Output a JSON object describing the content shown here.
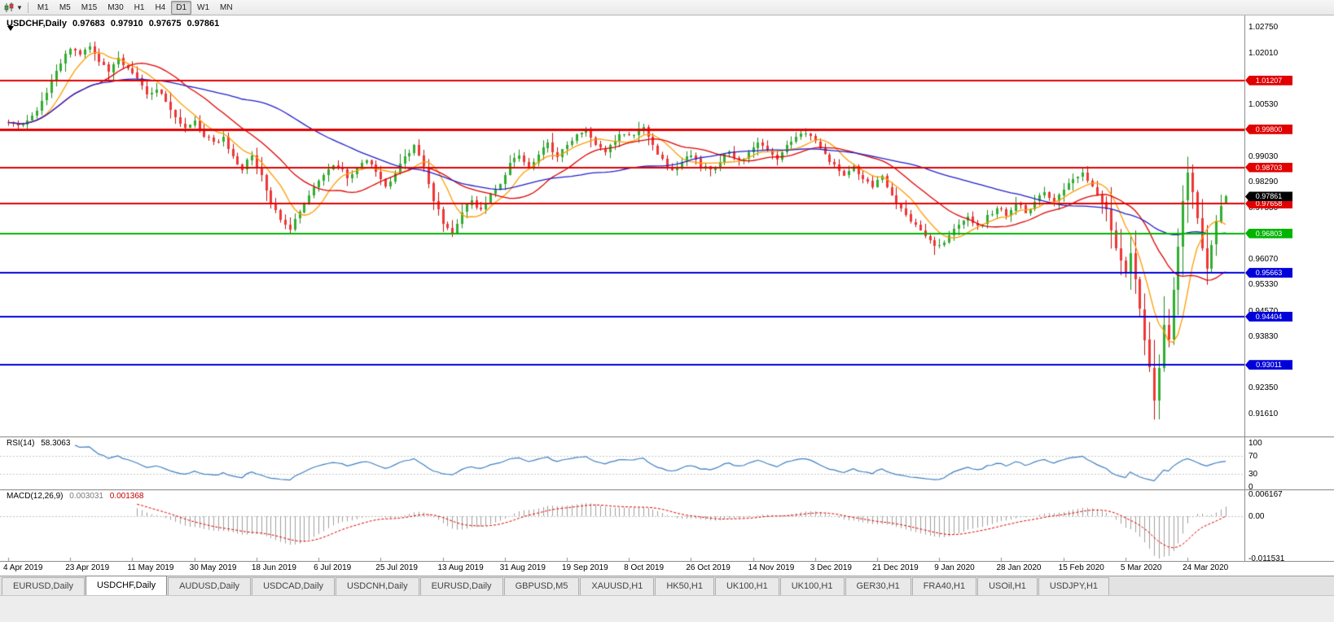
{
  "toolbar": {
    "chart_type_icon": "candlestick-chart-icon",
    "timeframes": [
      {
        "label": "M1"
      },
      {
        "label": "M5"
      },
      {
        "label": "M15"
      },
      {
        "label": "M30"
      },
      {
        "label": "H1"
      },
      {
        "label": "H4"
      },
      {
        "label": "D1",
        "active": true
      },
      {
        "label": "W1"
      },
      {
        "label": "MN"
      }
    ]
  },
  "chart": {
    "symbol_title": "USDCHF,Daily",
    "open": "0.97683",
    "high": "0.97910",
    "low": "0.97675",
    "close": "0.97861"
  },
  "price_axis": {
    "ticks": [
      {
        "v": 1.0275,
        "label": "1.02750"
      },
      {
        "v": 1.0201,
        "label": "1.02010"
      },
      {
        "v": 1.0053,
        "label": "1.00530"
      },
      {
        "v": 0.9903,
        "label": "0.99030"
      },
      {
        "v": 0.9829,
        "label": "0.98290"
      },
      {
        "v": 0.9755,
        "label": "0.97550"
      },
      {
        "v": 0.9607,
        "label": "0.96070"
      },
      {
        "v": 0.9533,
        "label": "0.95330"
      },
      {
        "v": 0.9457,
        "label": "0.94570"
      },
      {
        "v": 0.9383,
        "label": "0.93830"
      },
      {
        "v": 0.9235,
        "label": "0.92350"
      },
      {
        "v": 0.9161,
        "label": "0.91610"
      }
    ]
  },
  "rsi": {
    "name": "RSI(14)",
    "value": "58.3063",
    "color": "#3e7fc1",
    "level_lines": [
      70,
      30
    ],
    "axis": [
      {
        "v": 100,
        "label": "100"
      },
      {
        "v": 70,
        "label": "70"
      },
      {
        "v": 30,
        "label": "30"
      },
      {
        "v": 0,
        "label": "0"
      }
    ]
  },
  "macd": {
    "name": "MACD(12,26,9)",
    "value_main": "0.003031",
    "value_signal": "0.001368",
    "hist_color": "#9f9f9f",
    "signal_color": "#e00000",
    "axis": [
      {
        "slot": "top",
        "label": "0.006167"
      },
      {
        "slot": "zero",
        "label": "0.00"
      },
      {
        "slot": "bottom",
        "label": "-0.011531"
      }
    ]
  },
  "tabs": [
    {
      "label": "EURUSD,Daily"
    },
    {
      "label": "USDCHF,Daily",
      "active": true
    },
    {
      "label": "AUDUSD,Daily"
    },
    {
      "label": "USDCAD,Daily"
    },
    {
      "label": "USDCNH,Daily"
    },
    {
      "label": "EURUSD,Daily"
    },
    {
      "label": "GBPUSD,M5"
    },
    {
      "label": "XAUUSD,H1"
    },
    {
      "label": "HK50,H1"
    },
    {
      "label": "UK100,H1"
    },
    {
      "label": "UK100,H1"
    },
    {
      "label": "GER30,H1"
    },
    {
      "label": "FRA40,H1"
    },
    {
      "label": "USOil,H1"
    },
    {
      "label": "USDJPY,H1"
    }
  ],
  "chart_data": {
    "type": "candlestick",
    "symbol": "USDCHF",
    "timeframe": "Daily",
    "n_candles": 256,
    "price_range": {
      "top": 1.0275,
      "bottom": 0.9161
    },
    "x_label_every": 13,
    "x_labels": [
      "4 Apr 2019",
      "23 Apr 2019",
      "11 May 2019",
      "30 May 2019",
      "18 Jun 2019",
      "6 Jul 2019",
      "25 Jul 2019",
      "13 Aug 2019",
      "31 Aug 2019",
      "19 Sep 2019",
      "8 Oct 2019",
      "26 Oct 2019",
      "14 Nov 2019",
      "3 Dec 2019",
      "21 Dec 2019",
      "9 Jan 2020",
      "28 Jan 2020",
      "15 Feb 2020",
      "5 Mar 2020",
      "24 Mar 2020"
    ],
    "last_ohlc": [
      0.97683,
      0.9791,
      0.97675,
      0.97861
    ],
    "close_anchors": [
      [
        0,
        1.0003
      ],
      [
        3,
        0.9998
      ],
      [
        5,
        1.0015
      ],
      [
        7,
        1.006
      ],
      [
        9,
        1.012
      ],
      [
        11,
        1.0175
      ],
      [
        13,
        1.021
      ],
      [
        15,
        1.019
      ],
      [
        17,
        1.0215
      ],
      [
        19,
        1.018
      ],
      [
        21,
        1.015
      ],
      [
        23,
        1.018
      ],
      [
        25,
        1.0155
      ],
      [
        27,
        1.012
      ],
      [
        29,
        1.0085
      ],
      [
        31,
        1.01
      ],
      [
        33,
        1.0055
      ],
      [
        35,
        1.002
      ],
      [
        37,
        0.9985
      ],
      [
        39,
        1.0
      ],
      [
        41,
        0.9965
      ],
      [
        43,
        0.9945
      ],
      [
        45,
        0.9955
      ],
      [
        47,
        0.9898
      ],
      [
        49,
        0.9868
      ],
      [
        51,
        0.9905
      ],
      [
        53,
        0.9845
      ],
      [
        55,
        0.9768
      ],
      [
        57,
        0.9718
      ],
      [
        59,
        0.9698
      ],
      [
        61,
        0.9745
      ],
      [
        63,
        0.979
      ],
      [
        65,
        0.983
      ],
      [
        67,
        0.9862
      ],
      [
        69,
        0.9878
      ],
      [
        71,
        0.9843
      ],
      [
        73,
        0.9868
      ],
      [
        75,
        0.9893
      ],
      [
        77,
        0.9852
      ],
      [
        79,
        0.9812
      ],
      [
        81,
        0.9853
      ],
      [
        83,
        0.9903
      ],
      [
        85,
        0.9933
      ],
      [
        87,
        0.9868
      ],
      [
        89,
        0.9778
      ],
      [
        91,
        0.9713
      ],
      [
        93,
        0.9688
      ],
      [
        95,
        0.9738
      ],
      [
        97,
        0.9778
      ],
      [
        99,
        0.9744
      ],
      [
        101,
        0.9788
      ],
      [
        103,
        0.9828
      ],
      [
        105,
        0.9878
      ],
      [
        107,
        0.9903
      ],
      [
        109,
        0.9868
      ],
      [
        111,
        0.9908
      ],
      [
        113,
        0.9938
      ],
      [
        115,
        0.9903
      ],
      [
        117,
        0.9928
      ],
      [
        119,
        0.9968
      ],
      [
        121,
        0.9975
      ],
      [
        123,
        0.9938
      ],
      [
        125,
        0.9908
      ],
      [
        127,
        0.9948
      ],
      [
        129,
        0.9973
      ],
      [
        131,
        0.9958
      ],
      [
        133,
        0.9983
      ],
      [
        135,
        0.9938
      ],
      [
        137,
        0.9888
      ],
      [
        139,
        0.9858
      ],
      [
        141,
        0.9883
      ],
      [
        143,
        0.9908
      ],
      [
        145,
        0.9878
      ],
      [
        147,
        0.9858
      ],
      [
        149,
        0.9888
      ],
      [
        151,
        0.9918
      ],
      [
        153,
        0.9888
      ],
      [
        155,
        0.9908
      ],
      [
        157,
        0.9948
      ],
      [
        159,
        0.9923
      ],
      [
        161,
        0.9893
      ],
      [
        163,
        0.9928
      ],
      [
        165,
        0.9958
      ],
      [
        167,
        0.9973
      ],
      [
        169,
        0.9943
      ],
      [
        171,
        0.9903
      ],
      [
        173,
        0.9873
      ],
      [
        175,
        0.9853
      ],
      [
        177,
        0.9868
      ],
      [
        179,
        0.9838
      ],
      [
        181,
        0.9818
      ],
      [
        183,
        0.9843
      ],
      [
        185,
        0.9788
      ],
      [
        187,
        0.9748
      ],
      [
        189,
        0.9718
      ],
      [
        191,
        0.9688
      ],
      [
        193,
        0.9663
      ],
      [
        195,
        0.964
      ],
      [
        197,
        0.9668
      ],
      [
        199,
        0.9703
      ],
      [
        201,
        0.9723
      ],
      [
        203,
        0.9698
      ],
      [
        205,
        0.9728
      ],
      [
        207,
        0.9753
      ],
      [
        209,
        0.9733
      ],
      [
        211,
        0.9773
      ],
      [
        213,
        0.9738
      ],
      [
        215,
        0.9768
      ],
      [
        217,
        0.9798
      ],
      [
        219,
        0.9773
      ],
      [
        221,
        0.9808
      ],
      [
        223,
        0.9838
      ],
      [
        225,
        0.9848
      ],
      [
        227,
        0.9818
      ],
      [
        229,
        0.9773
      ],
      [
        230,
        0.9743
      ],
      [
        231,
        0.9693
      ],
      [
        232,
        0.9643
      ],
      [
        233,
        0.9603
      ],
      [
        234,
        0.9568
      ],
      [
        235,
        0.9618
      ],
      [
        236,
        0.9548
      ],
      [
        237,
        0.9462
      ],
      [
        238,
        0.9372
      ],
      [
        239,
        0.9288
      ],
      [
        240,
        0.9205
      ],
      [
        241,
        0.9298
      ],
      [
        242,
        0.9418
      ],
      [
        243,
        0.9378
      ],
      [
        244,
        0.9518
      ],
      [
        245,
        0.9648
      ],
      [
        246,
        0.9778
      ],
      [
        247,
        0.9858
      ],
      [
        248,
        0.9798
      ],
      [
        249,
        0.9728
      ],
      [
        250,
        0.9638
      ],
      [
        251,
        0.9578
      ],
      [
        252,
        0.9648
      ],
      [
        253,
        0.9718
      ],
      [
        254,
        0.9758
      ],
      [
        255,
        0.97861
      ]
    ],
    "forced_lows": [
      [
        240,
        0.9165
      ],
      [
        251,
        0.9532
      ]
    ],
    "forced_highs": [
      [
        17,
        1.0226
      ],
      [
        247,
        0.9901
      ]
    ],
    "colors": {
      "up_fill": "#2fae2f",
      "up_wick": "#1d8a1d",
      "down_fill": "#f03535",
      "down_wick": "#c01010",
      "background": "#ffffff"
    },
    "moving_averages": [
      {
        "period": 8,
        "color": "#ff9c00"
      },
      {
        "period": 20,
        "color": "#e00000"
      },
      {
        "period": 50,
        "color": "#2020cc"
      }
    ],
    "levels": [
      {
        "v": 1.01207,
        "label": "1.01207",
        "color": "#e00000",
        "width": 2
      },
      {
        "v": 0.998,
        "label": "0.99800",
        "color": "#e00000",
        "width": 3
      },
      {
        "v": 0.98703,
        "label": "0.98703",
        "color": "#e00000",
        "width": 2
      },
      {
        "v": 0.97658,
        "label": "0.97658",
        "color": "#e00000",
        "width": 2
      },
      {
        "v": 0.96803,
        "label": "0.96803",
        "color": "#00b400",
        "width": 2
      },
      {
        "v": 0.95663,
        "label": "0.95663",
        "color": "#0000d8",
        "width": 2
      },
      {
        "v": 0.94404,
        "label": "0.94404",
        "color": "#0000d8",
        "width": 2
      },
      {
        "v": 0.93011,
        "label": "0.93011",
        "color": "#0000d8",
        "width": 2
      }
    ],
    "current_price": {
      "v": 0.97861,
      "label": "0.97861",
      "color": "#000000"
    },
    "indicators": {
      "rsi_period": 14,
      "macd_fast": 12,
      "macd_slow": 26,
      "macd_signal": 9
    }
  }
}
